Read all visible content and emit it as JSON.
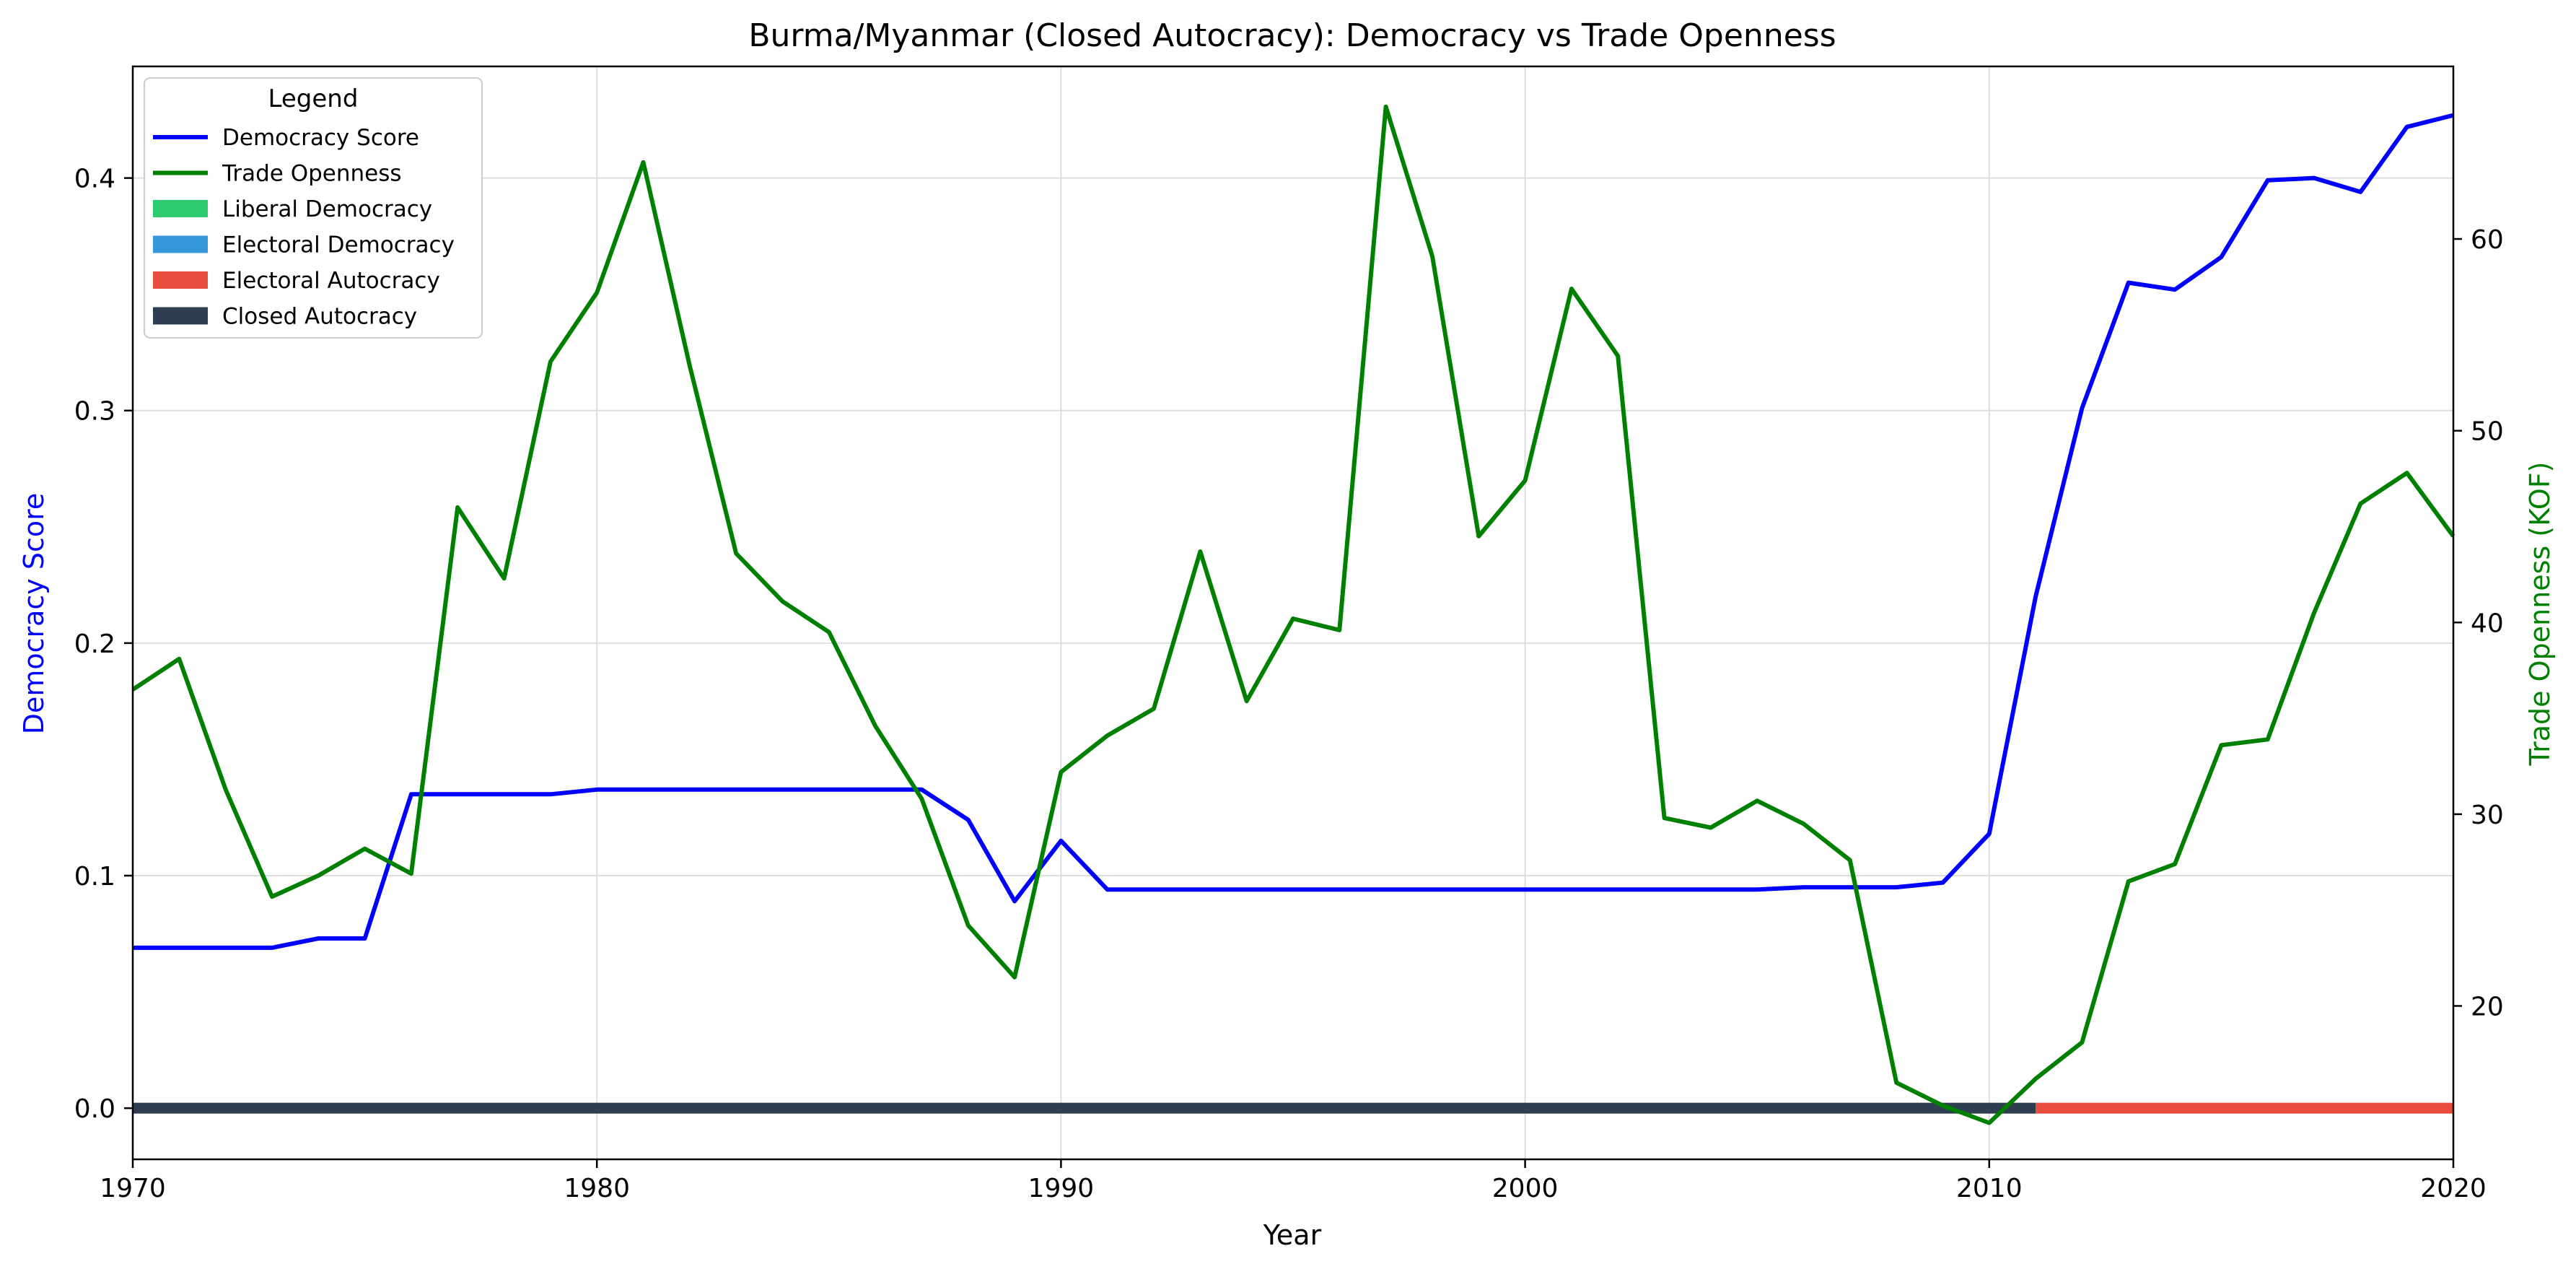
{
  "chart_data": {
    "type": "line",
    "title": "Burma/Myanmar (Closed Autocracy): Democracy vs Trade Openness",
    "xlabel": "Year",
    "ylabel_left": "Democracy Score",
    "ylabel_right": "Trade Openness (KOF)",
    "xlim": [
      1970,
      2020
    ],
    "ylim_left": [
      -0.022,
      0.448
    ],
    "ylim_right": [
      12.0,
      69.0
    ],
    "x_ticks": [
      1970,
      1980,
      1990,
      2000,
      2010,
      2020
    ],
    "y_ticks_left": [
      0.0,
      0.1,
      0.2,
      0.3,
      0.4
    ],
    "y_ticks_left_labels": [
      "0.0",
      "0.1",
      "0.2",
      "0.3",
      "0.4"
    ],
    "y_ticks_right": [
      20,
      30,
      40,
      50,
      60
    ],
    "grid": true,
    "legend_title": "Legend",
    "legend_position": "top-left",
    "legend": [
      {
        "label": "Democracy Score",
        "kind": "line",
        "color": "#0000ff"
      },
      {
        "label": "Trade Openness",
        "kind": "line",
        "color": "#008000"
      },
      {
        "label": "Liberal Democracy",
        "kind": "patch",
        "color": "#2ecc71"
      },
      {
        "label": "Electoral Democracy",
        "kind": "patch",
        "color": "#3498db"
      },
      {
        "label": "Electoral Autocracy",
        "kind": "patch",
        "color": "#e74c3c"
      },
      {
        "label": "Closed Autocracy",
        "kind": "patch",
        "color": "#2c3e50"
      }
    ],
    "series": [
      {
        "name": "Democracy Score",
        "axis": "left",
        "color": "#0000ff",
        "x": [
          1970,
          1971,
          1972,
          1973,
          1974,
          1975,
          1976,
          1977,
          1978,
          1979,
          1980,
          1981,
          1982,
          1983,
          1984,
          1985,
          1986,
          1987,
          1988,
          1989,
          1990,
          1991,
          1992,
          1993,
          1994,
          1995,
          1996,
          1997,
          1998,
          1999,
          2000,
          2001,
          2002,
          2003,
          2004,
          2005,
          2006,
          2007,
          2008,
          2009,
          2010,
          2011,
          2012,
          2013,
          2014,
          2015,
          2016,
          2017,
          2018,
          2019,
          2020
        ],
        "values": [
          0.069,
          0.069,
          0.069,
          0.069,
          0.073,
          0.073,
          0.135,
          0.135,
          0.135,
          0.135,
          0.137,
          0.137,
          0.137,
          0.137,
          0.137,
          0.137,
          0.137,
          0.137,
          0.124,
          0.089,
          0.115,
          0.094,
          0.094,
          0.094,
          0.094,
          0.094,
          0.094,
          0.094,
          0.094,
          0.094,
          0.094,
          0.094,
          0.094,
          0.094,
          0.094,
          0.094,
          0.095,
          0.095,
          0.095,
          0.097,
          0.118,
          0.22,
          0.301,
          0.355,
          0.352,
          0.366,
          0.399,
          0.4,
          0.394,
          0.422,
          0.427
        ]
      },
      {
        "name": "Trade Openness",
        "axis": "right",
        "color": "#008000",
        "x": [
          1970,
          1971,
          1972,
          1973,
          1974,
          1975,
          1976,
          1977,
          1978,
          1979,
          1980,
          1981,
          1982,
          1983,
          1984,
          1985,
          1986,
          1987,
          1988,
          1989,
          1990,
          1991,
          1992,
          1993,
          1994,
          1995,
          1996,
          1997,
          1998,
          1999,
          2000,
          2001,
          2002,
          2003,
          2004,
          2005,
          2006,
          2007,
          2008,
          2009,
          2010,
          2011,
          2012,
          2013,
          2014,
          2015,
          2016,
          2017,
          2018,
          2019,
          2020
        ],
        "values": [
          36.5,
          38.1,
          31.3,
          25.7,
          26.8,
          28.2,
          26.9,
          46.0,
          42.3,
          53.6,
          57.2,
          64.0,
          53.4,
          43.6,
          41.1,
          39.5,
          34.6,
          30.8,
          24.2,
          21.5,
          32.2,
          34.1,
          35.5,
          43.7,
          35.9,
          40.2,
          39.6,
          66.9,
          59.1,
          44.5,
          47.4,
          57.4,
          53.9,
          29.8,
          29.3,
          30.7,
          29.5,
          27.6,
          16.0,
          14.8,
          13.9,
          16.2,
          18.1,
          26.5,
          27.4,
          33.6,
          33.9,
          40.5,
          46.2,
          47.8,
          44.5
        ]
      }
    ],
    "regime_bar": {
      "y": 0.0,
      "segments": [
        {
          "regime": "Closed Autocracy",
          "start": 1970,
          "end": 2011,
          "color": "#2c3e50"
        },
        {
          "regime": "Electoral Autocracy",
          "start": 2011,
          "end": 2020,
          "color": "#e74c3c"
        }
      ]
    }
  }
}
